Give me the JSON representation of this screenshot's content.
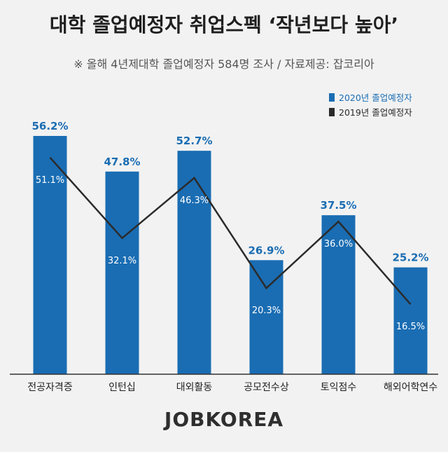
{
  "title": "대학 졸업예정자 취업스펙 ‘작년보다 높아’",
  "subtitle": "※ 올해 4년제대학 졸업예정자 584명 조사 / 자료제공: 잡코리아",
  "brand": "JOBKOREA",
  "colors": {
    "series_2020": "#1a6db3",
    "series_2019": "#2b2b2b",
    "label_2020": "#1a6db3",
    "label_inside": "#ffffff",
    "axis": "#333333"
  },
  "chart_data": {
    "type": "bar",
    "categories": [
      "전공자격증",
      "인턴십",
      "대외활동",
      "공모전수상",
      "토익점수",
      "해외어학연수"
    ],
    "series": [
      {
        "name": "2020년 졸업예정자",
        "type": "bar",
        "values": [
          56.2,
          47.8,
          52.7,
          26.9,
          37.5,
          25.2
        ]
      },
      {
        "name": "2019년 졸업예정자",
        "type": "line",
        "values": [
          51.1,
          32.1,
          46.3,
          20.3,
          36.0,
          16.5
        ]
      }
    ],
    "value_suffix": "%",
    "ylim": [
      0,
      70
    ],
    "legend_position": "top-right",
    "grid": false
  }
}
